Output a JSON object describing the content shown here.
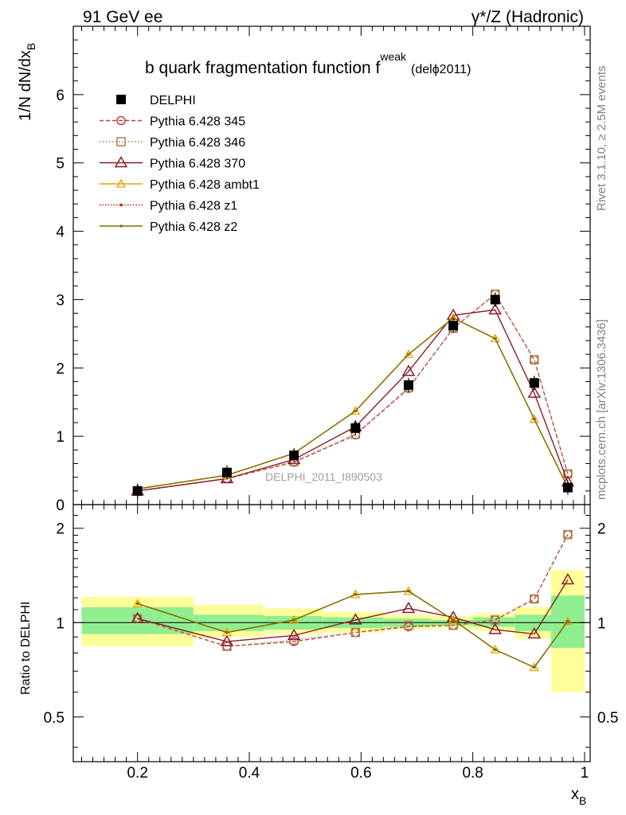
{
  "header": {
    "left": "91 GeV ee",
    "right": "γ*/Z (Hadronic)"
  },
  "title": {
    "main": "b quark fragmentation function f",
    "sup": "weak",
    "tag": "(delϕ2011)"
  },
  "side_labels": {
    "rivet": "Rivet 3.1.10, ≥ 2.5M events",
    "mcplots": "mcplots.cern.ch [arXiv:1306.3436]"
  },
  "watermark": "DELPHI_2011_I890503",
  "axes": {
    "ylabel_main": "1/N dN/dx",
    "ylabel_main_sub": "B",
    "ylabel_ratio": "Ratio to DELPHI",
    "xlabel": "x",
    "xlabel_sub": "B"
  },
  "colors": {
    "data": "#000000",
    "p345": "#c04040",
    "p346": "#b08050",
    "p370": "#8b1a2a",
    "ambt1": "#e8a000",
    "z1": "#cc2010",
    "z2": "#7f7000",
    "band_inner": "#90ee90",
    "band_outer": "#ffff99"
  },
  "chart_data": [
    {
      "type": "line",
      "panel": "main",
      "xlim": [
        0.085,
        1.01
      ],
      "ylim": [
        0,
        7.0
      ],
      "xticks": [
        "0.2",
        "0.4",
        "0.6",
        "0.8",
        "1"
      ],
      "xtick_values": [
        0.2,
        0.4,
        0.6,
        0.8,
        1.0
      ],
      "yticks": [
        "0",
        "1",
        "2",
        "3",
        "4",
        "5",
        "6"
      ],
      "ytick_values": [
        0,
        1,
        2,
        3,
        4,
        5,
        6
      ],
      "legend_position": "top-left",
      "x": [
        0.2,
        0.36,
        0.48,
        0.59,
        0.685,
        0.765,
        0.84,
        0.91,
        0.97
      ],
      "series": [
        {
          "name": "DELPHI",
          "key": "data",
          "marker": "filled-square",
          "values": [
            0.2,
            0.47,
            0.72,
            1.12,
            1.75,
            2.62,
            3.0,
            1.78,
            0.25
          ]
        },
        {
          "name": "Pythia 6.428 345",
          "key": "p345",
          "marker": "open-circle",
          "dash": "5,3",
          "values": [
            0.2,
            0.38,
            0.62,
            1.02,
            1.7,
            2.58,
            3.08,
            2.12,
            0.45
          ]
        },
        {
          "name": "Pythia 6.428 346",
          "key": "p346",
          "marker": "open-square",
          "dash": "1.5,2.5",
          "values": [
            0.2,
            0.38,
            0.63,
            1.03,
            1.71,
            2.58,
            3.08,
            2.12,
            0.45
          ]
        },
        {
          "name": "Pythia 6.428 370",
          "key": "p370",
          "marker": "open-triangle-large",
          "dash": "",
          "values": [
            0.2,
            0.38,
            0.66,
            1.14,
            1.95,
            2.77,
            2.85,
            1.63,
            0.33
          ]
        },
        {
          "name": "Pythia 6.428 ambt1",
          "key": "ambt1",
          "marker": "open-triangle",
          "dash": "",
          "values": [
            0.23,
            0.43,
            0.75,
            1.37,
            2.2,
            2.73,
            2.43,
            1.25,
            0.25
          ]
        },
        {
          "name": "Pythia 6.428 z1",
          "key": "z1",
          "marker": "dot",
          "dash": "1.5,2",
          "values": [
            0.23,
            0.43,
            0.75,
            1.37,
            2.2,
            2.73,
            2.43,
            1.25,
            0.25
          ]
        },
        {
          "name": "Pythia 6.428 z2",
          "key": "z2",
          "marker": "dot",
          "dash": "",
          "values": [
            0.23,
            0.43,
            0.75,
            1.37,
            2.2,
            2.73,
            2.43,
            1.25,
            0.25
          ]
        }
      ]
    },
    {
      "type": "line",
      "panel": "ratio",
      "xlim": [
        0.085,
        1.01
      ],
      "ylim": [
        0.36,
        2.38
      ],
      "log_y": true,
      "yticks": [
        "0.5",
        "1",
        "2"
      ],
      "ytick_values": [
        0.5,
        1,
        2
      ],
      "bands": [
        {
          "x0": 0.1,
          "x1": 0.3,
          "inner": [
            0.92,
            1.12
          ],
          "outer": [
            0.84,
            1.21
          ]
        },
        {
          "x0": 0.3,
          "x1": 0.425,
          "inner": [
            0.94,
            1.06
          ],
          "outer": [
            0.9,
            1.14
          ]
        },
        {
          "x0": 0.425,
          "x1": 0.53,
          "inner": [
            0.95,
            1.05
          ],
          "outer": [
            0.92,
            1.11
          ]
        },
        {
          "x0": 0.53,
          "x1": 0.64,
          "inner": [
            0.96,
            1.04
          ],
          "outer": [
            0.93,
            1.08
          ]
        },
        {
          "x0": 0.64,
          "x1": 0.725,
          "inner": [
            0.97,
            1.03
          ],
          "outer": [
            0.95,
            1.06
          ]
        },
        {
          "x0": 0.725,
          "x1": 0.8,
          "inner": [
            0.98,
            1.02
          ],
          "outer": [
            0.96,
            1.05
          ]
        },
        {
          "x0": 0.8,
          "x1": 0.875,
          "inner": [
            0.97,
            1.04
          ],
          "outer": [
            0.94,
            1.07
          ]
        },
        {
          "x0": 0.875,
          "x1": 0.94,
          "inner": [
            0.94,
            1.06
          ],
          "outer": [
            0.89,
            1.12
          ]
        },
        {
          "x0": 0.94,
          "x1": 1.0,
          "inner": [
            0.83,
            1.22
          ],
          "outer": [
            0.6,
            1.47
          ]
        }
      ],
      "x": [
        0.2,
        0.36,
        0.48,
        0.59,
        0.685,
        0.765,
        0.84,
        0.91,
        0.97
      ],
      "series": [
        {
          "name": "Pythia 6.428 345",
          "key": "p345",
          "values": [
            1.03,
            0.84,
            0.87,
            0.93,
            0.97,
            0.98,
            1.02,
            1.19,
            1.91
          ]
        },
        {
          "name": "Pythia 6.428 346",
          "key": "p346",
          "values": [
            1.03,
            0.84,
            0.88,
            0.93,
            0.98,
            0.98,
            1.02,
            1.19,
            1.91
          ]
        },
        {
          "name": "Pythia 6.428 370",
          "key": "p370",
          "values": [
            1.03,
            0.87,
            0.91,
            1.02,
            1.11,
            1.04,
            0.95,
            0.92,
            1.37
          ]
        },
        {
          "name": "Pythia 6.428 ambt1",
          "key": "ambt1",
          "values": [
            1.15,
            0.93,
            1.02,
            1.23,
            1.26,
            1.02,
            0.82,
            0.72,
            1.01
          ]
        },
        {
          "name": "Pythia 6.428 z1",
          "key": "z1",
          "values": [
            1.15,
            0.93,
            1.02,
            1.23,
            1.26,
            1.02,
            0.82,
            0.72,
            1.01
          ]
        },
        {
          "name": "Pythia 6.428 z2",
          "key": "z2",
          "values": [
            1.15,
            0.93,
            1.02,
            1.23,
            1.26,
            1.02,
            0.82,
            0.72,
            1.01
          ]
        }
      ]
    }
  ]
}
